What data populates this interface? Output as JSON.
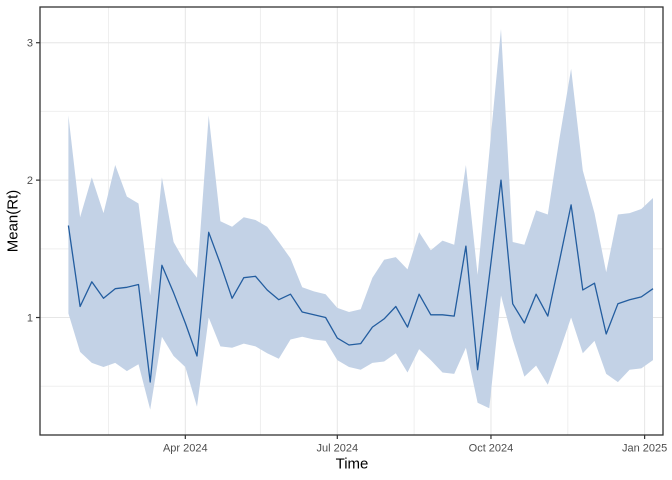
{
  "chart_data": {
    "type": "line",
    "title": "",
    "xlabel": "Time",
    "ylabel": "Mean(Rt)",
    "legend": "none",
    "grid": "on",
    "x_range": [
      "2024-01-05",
      "2025-01-12"
    ],
    "ylim": [
      0.145,
      3.26
    ],
    "y_major_ticks": [
      {
        "value": 1,
        "label": "1"
      },
      {
        "value": 2,
        "label": "2"
      },
      {
        "value": 3,
        "label": "3"
      }
    ],
    "y_minor_ticks": [
      0.5,
      1.5,
      2.5
    ],
    "x_major_ticks": [
      {
        "date": "2024-04-01",
        "label": "Apr 2024"
      },
      {
        "date": "2024-07-01",
        "label": "Jul 2024"
      },
      {
        "date": "2024-10-01",
        "label": "Oct 2024"
      },
      {
        "date": "2025-01-01",
        "label": "Jan 2025"
      }
    ],
    "x_minor_ticks": [
      "2024-02-15",
      "2024-05-16",
      "2024-08-16",
      "2024-11-16"
    ],
    "series": [
      {
        "name": "mean",
        "type": "line"
      },
      {
        "name": "credible-interval",
        "type": "ribbon",
        "bounds": [
          "lower",
          "upper"
        ]
      }
    ],
    "points_columns": [
      "date",
      "mean",
      "lower",
      "upper"
    ],
    "points": [
      [
        "2024-01-22",
        1.67,
        1.03,
        2.47
      ],
      [
        "2024-01-29",
        1.08,
        0.75,
        1.73
      ],
      [
        "2024-02-05",
        1.26,
        0.67,
        2.02
      ],
      [
        "2024-02-12",
        1.14,
        0.64,
        1.76
      ],
      [
        "2024-02-19",
        1.21,
        0.67,
        2.11
      ],
      [
        "2024-02-26",
        1.22,
        0.61,
        1.88
      ],
      [
        "2024-03-04",
        1.24,
        0.66,
        1.83
      ],
      [
        "2024-03-11",
        0.53,
        0.33,
        1.16
      ],
      [
        "2024-03-18",
        1.38,
        0.86,
        2.02
      ],
      [
        "2024-03-25",
        1.18,
        0.72,
        1.55
      ],
      [
        "2024-04-01",
        0.96,
        0.64,
        1.4
      ],
      [
        "2024-04-08",
        0.72,
        0.35,
        1.29
      ],
      [
        "2024-04-15",
        1.62,
        1.0,
        2.47
      ],
      [
        "2024-04-22",
        1.39,
        0.79,
        1.7
      ],
      [
        "2024-04-29",
        1.14,
        0.78,
        1.66
      ],
      [
        "2024-05-06",
        1.29,
        0.81,
        1.73
      ],
      [
        "2024-05-13",
        1.3,
        0.79,
        1.71
      ],
      [
        "2024-05-20",
        1.2,
        0.74,
        1.66
      ],
      [
        "2024-05-27",
        1.13,
        0.7,
        1.55
      ],
      [
        "2024-06-03",
        1.17,
        0.84,
        1.43
      ],
      [
        "2024-06-10",
        1.04,
        0.86,
        1.22
      ],
      [
        "2024-06-17",
        1.02,
        0.84,
        1.19
      ],
      [
        "2024-06-24",
        1.0,
        0.83,
        1.17
      ],
      [
        "2024-07-01",
        0.85,
        0.69,
        1.07
      ],
      [
        "2024-07-08",
        0.8,
        0.64,
        1.04
      ],
      [
        "2024-07-15",
        0.81,
        0.62,
        1.06
      ],
      [
        "2024-07-22",
        0.93,
        0.67,
        1.29
      ],
      [
        "2024-07-29",
        0.99,
        0.68,
        1.42
      ],
      [
        "2024-08-05",
        1.08,
        0.74,
        1.44
      ],
      [
        "2024-08-12",
        0.93,
        0.6,
        1.35
      ],
      [
        "2024-08-19",
        1.17,
        0.77,
        1.62
      ],
      [
        "2024-08-26",
        1.02,
        0.69,
        1.49
      ],
      [
        "2024-09-02",
        1.02,
        0.6,
        1.56
      ],
      [
        "2024-09-09",
        1.01,
        0.59,
        1.53
      ],
      [
        "2024-09-16",
        1.52,
        0.78,
        2.11
      ],
      [
        "2024-09-23",
        0.62,
        0.38,
        1.31
      ],
      [
        "2024-09-30",
        1.3,
        0.34,
        2.2
      ],
      [
        "2024-10-07",
        2.0,
        1.16,
        3.1
      ],
      [
        "2024-10-14",
        1.1,
        0.84,
        1.55
      ],
      [
        "2024-10-21",
        0.96,
        0.57,
        1.53
      ],
      [
        "2024-10-28",
        1.17,
        0.65,
        1.78
      ],
      [
        "2024-11-04",
        1.01,
        0.51,
        1.75
      ],
      [
        "2024-11-11",
        1.41,
        0.75,
        2.3
      ],
      [
        "2024-11-18",
        1.82,
        1.0,
        2.81
      ],
      [
        "2024-11-25",
        1.2,
        0.74,
        2.07
      ],
      [
        "2024-12-02",
        1.25,
        0.83,
        1.76
      ],
      [
        "2024-12-09",
        0.88,
        0.59,
        1.33
      ],
      [
        "2024-12-16",
        1.1,
        0.53,
        1.75
      ],
      [
        "2024-12-23",
        1.13,
        0.62,
        1.76
      ],
      [
        "2024-12-30",
        1.15,
        0.63,
        1.79
      ],
      [
        "2025-01-06",
        1.21,
        0.69,
        1.87
      ]
    ]
  },
  "colors": {
    "line": "#235d9f",
    "ribbon": "#c3d2e6",
    "grid_major": "#e6e6e6",
    "grid_minor": "#efefef",
    "panel_border": "#333333",
    "tick_mark": "#333333",
    "tick_label": "#4d4d4d",
    "axis_title": "#000000",
    "background": "#ffffff"
  }
}
